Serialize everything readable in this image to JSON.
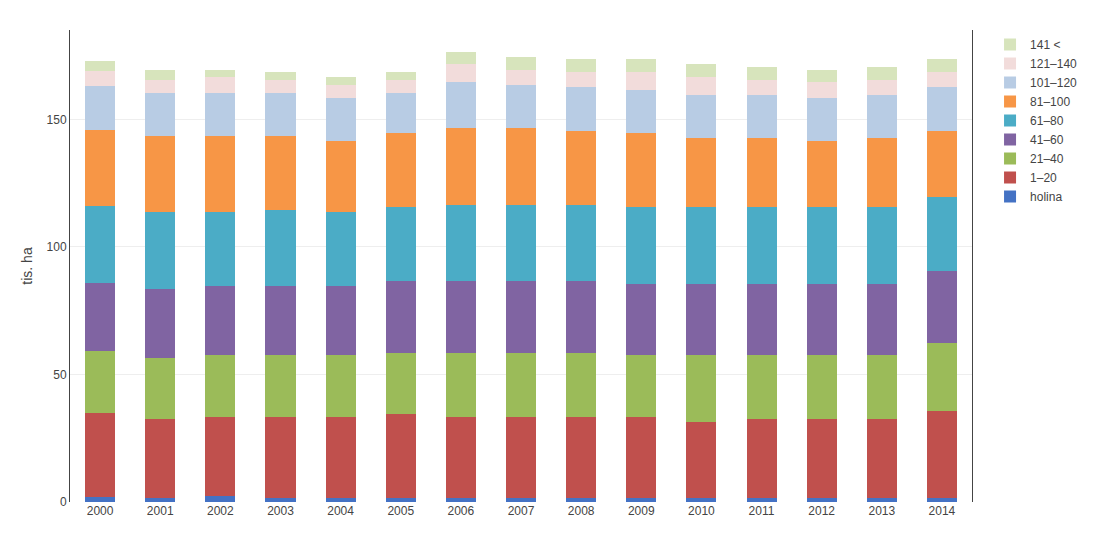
{
  "chart_data": {
    "type": "bar",
    "stacked": true,
    "categories": [
      "2000",
      "2001",
      "2002",
      "2003",
      "2004",
      "2005",
      "2006",
      "2007",
      "2008",
      "2009",
      "2010",
      "2011",
      "2012",
      "2013",
      "2014"
    ],
    "series": [
      {
        "name": "holina",
        "color": "#4472c4",
        "values": [
          2.0,
          1.5,
          2.5,
          1.5,
          1.5,
          1.5,
          1.5,
          1.5,
          1.5,
          1.5,
          1.5,
          1.5,
          1.5,
          1.5,
          1.5
        ]
      },
      {
        "name": "1–20",
        "color": "#c0504d",
        "values": [
          33,
          31,
          31,
          32,
          32,
          33,
          32,
          32,
          32,
          32,
          30,
          31,
          31,
          31,
          34
        ]
      },
      {
        "name": "21–40",
        "color": "#9bbb59",
        "values": [
          24,
          24,
          24,
          24,
          24,
          24,
          25,
          25,
          25,
          24,
          26,
          25,
          25,
          25,
          27
        ]
      },
      {
        "name": "41–60",
        "color": "#8064a2",
        "values": [
          27,
          27,
          27,
          27,
          27,
          28,
          28,
          28,
          28,
          28,
          28,
          28,
          28,
          28,
          28
        ]
      },
      {
        "name": "61–80",
        "color": "#4bacc6",
        "values": [
          30,
          30,
          29,
          30,
          29,
          29,
          30,
          30,
          30,
          30,
          30,
          30,
          30,
          30,
          29
        ]
      },
      {
        "name": "81–100",
        "color": "#f79646",
        "values": [
          30,
          30,
          30,
          29,
          28,
          29,
          30,
          30,
          29,
          29,
          27,
          27,
          26,
          27,
          26
        ]
      },
      {
        "name": "101–120",
        "color": "#b8cce4",
        "values": [
          17,
          17,
          17,
          17,
          17,
          16,
          18,
          17,
          17,
          17,
          17,
          17,
          17,
          17,
          17
        ]
      },
      {
        "name": "121–140",
        "color": "#f2dcdb",
        "values": [
          6,
          5,
          6,
          5,
          5,
          5,
          7,
          6,
          6,
          7,
          7,
          6,
          6,
          6,
          6
        ]
      },
      {
        "name": "141 <",
        "color": "#d7e4bc",
        "values": [
          4,
          4,
          3,
          3,
          3,
          3,
          5,
          5,
          5,
          5,
          5,
          5,
          5,
          5,
          5
        ]
      }
    ],
    "ylabel": "tis. ha",
    "ylim": [
      0,
      185
    ],
    "yticks": [
      0,
      50,
      100,
      150
    ],
    "grid": true,
    "legend": "right"
  }
}
